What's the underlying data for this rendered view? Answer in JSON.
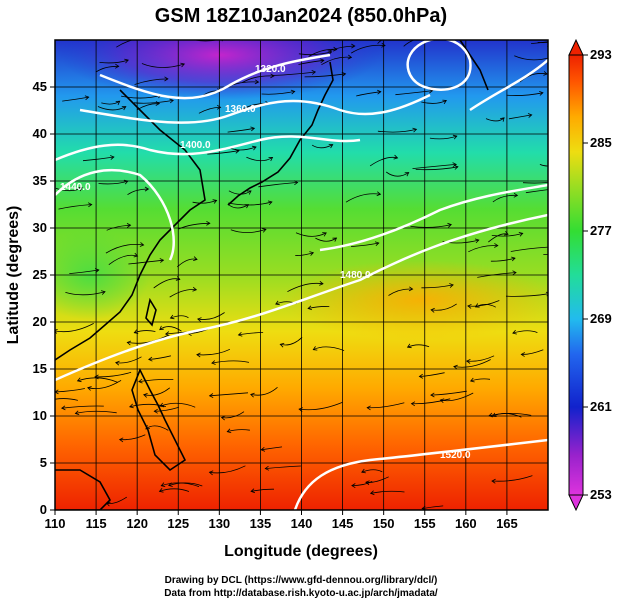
{
  "title": "GSM 18Z10Jan2024 (850.0hPa)",
  "xlabel": "Longitude (degrees)",
  "ylabel": "Latitude  (degrees)",
  "credits": [
    "Drawing by DCL (https://www.gfd-dennou.org/library/dcl/)",
    "Data from http://database.rish.kyoto-u.ac.jp/arch/jmadata/"
  ],
  "map": {
    "lon_range": [
      110,
      170
    ],
    "lat_range": [
      0,
      50
    ],
    "lon_ticks": [
      110,
      115,
      120,
      125,
      130,
      135,
      140,
      145,
      150,
      155,
      160,
      165
    ],
    "lat_ticks": [
      0,
      5,
      10,
      15,
      20,
      25,
      30,
      35,
      40,
      45
    ],
    "grid": true,
    "shading_variable": "temperature (K)",
    "overlay": [
      "streamlines (wind)",
      "geopotential height contours (white)",
      "coastlines (black)"
    ]
  },
  "colorbar": {
    "ticks": [
      253,
      261,
      269,
      277,
      285,
      293
    ],
    "range": [
      253,
      293
    ],
    "colors": [
      "#dd33dd",
      "#7722cc",
      "#1122cc",
      "#2277ee",
      "#22bbee",
      "#22ddaa",
      "#33dd33",
      "#88dd22",
      "#ddee11",
      "#ffcc00",
      "#ff8800",
      "#ff4400",
      "#ee2200"
    ]
  },
  "contour_labels": [
    "1320.0",
    "1360.0",
    "1400.0",
    "1440.0",
    "1480.0",
    "1520.0"
  ]
}
